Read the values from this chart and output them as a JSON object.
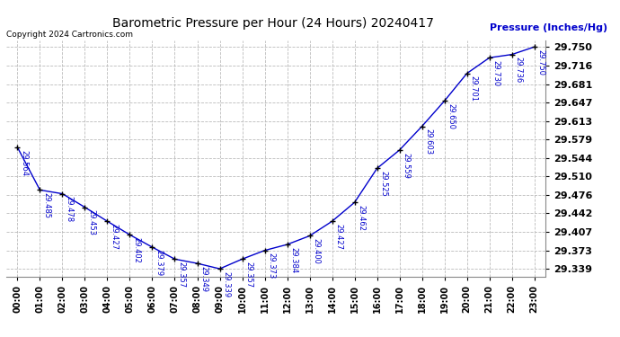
{
  "title": "Barometric Pressure per Hour (24 Hours) 20240417",
  "ylabel": "Pressure (Inches/Hg)",
  "copyright": "Copyright 2024 Cartronics.com",
  "hours": [
    "00:00",
    "01:00",
    "02:00",
    "03:00",
    "04:00",
    "05:00",
    "06:00",
    "07:00",
    "08:00",
    "09:00",
    "10:00",
    "11:00",
    "12:00",
    "13:00",
    "14:00",
    "15:00",
    "16:00",
    "17:00",
    "18:00",
    "19:00",
    "20:00",
    "21:00",
    "22:00",
    "23:00"
  ],
  "values": [
    29.564,
    29.485,
    29.478,
    29.453,
    29.427,
    29.402,
    29.379,
    29.357,
    29.349,
    29.339,
    29.357,
    29.373,
    29.384,
    29.4,
    29.427,
    29.462,
    29.525,
    29.559,
    29.603,
    29.65,
    29.701,
    29.73,
    29.736,
    29.75
  ],
  "line_color": "#0000cc",
  "marker_color": "#000000",
  "grid_color": "#bbbbbb",
  "bg_color": "#ffffff",
  "title_color": "#000000",
  "ylabel_color": "#0000cc",
  "copyright_color": "#000000",
  "label_color": "#0000cc",
  "ylim_min": 29.325,
  "ylim_max": 29.762,
  "ytick_values": [
    29.339,
    29.373,
    29.407,
    29.442,
    29.476,
    29.51,
    29.544,
    29.579,
    29.613,
    29.647,
    29.681,
    29.716,
    29.75
  ]
}
